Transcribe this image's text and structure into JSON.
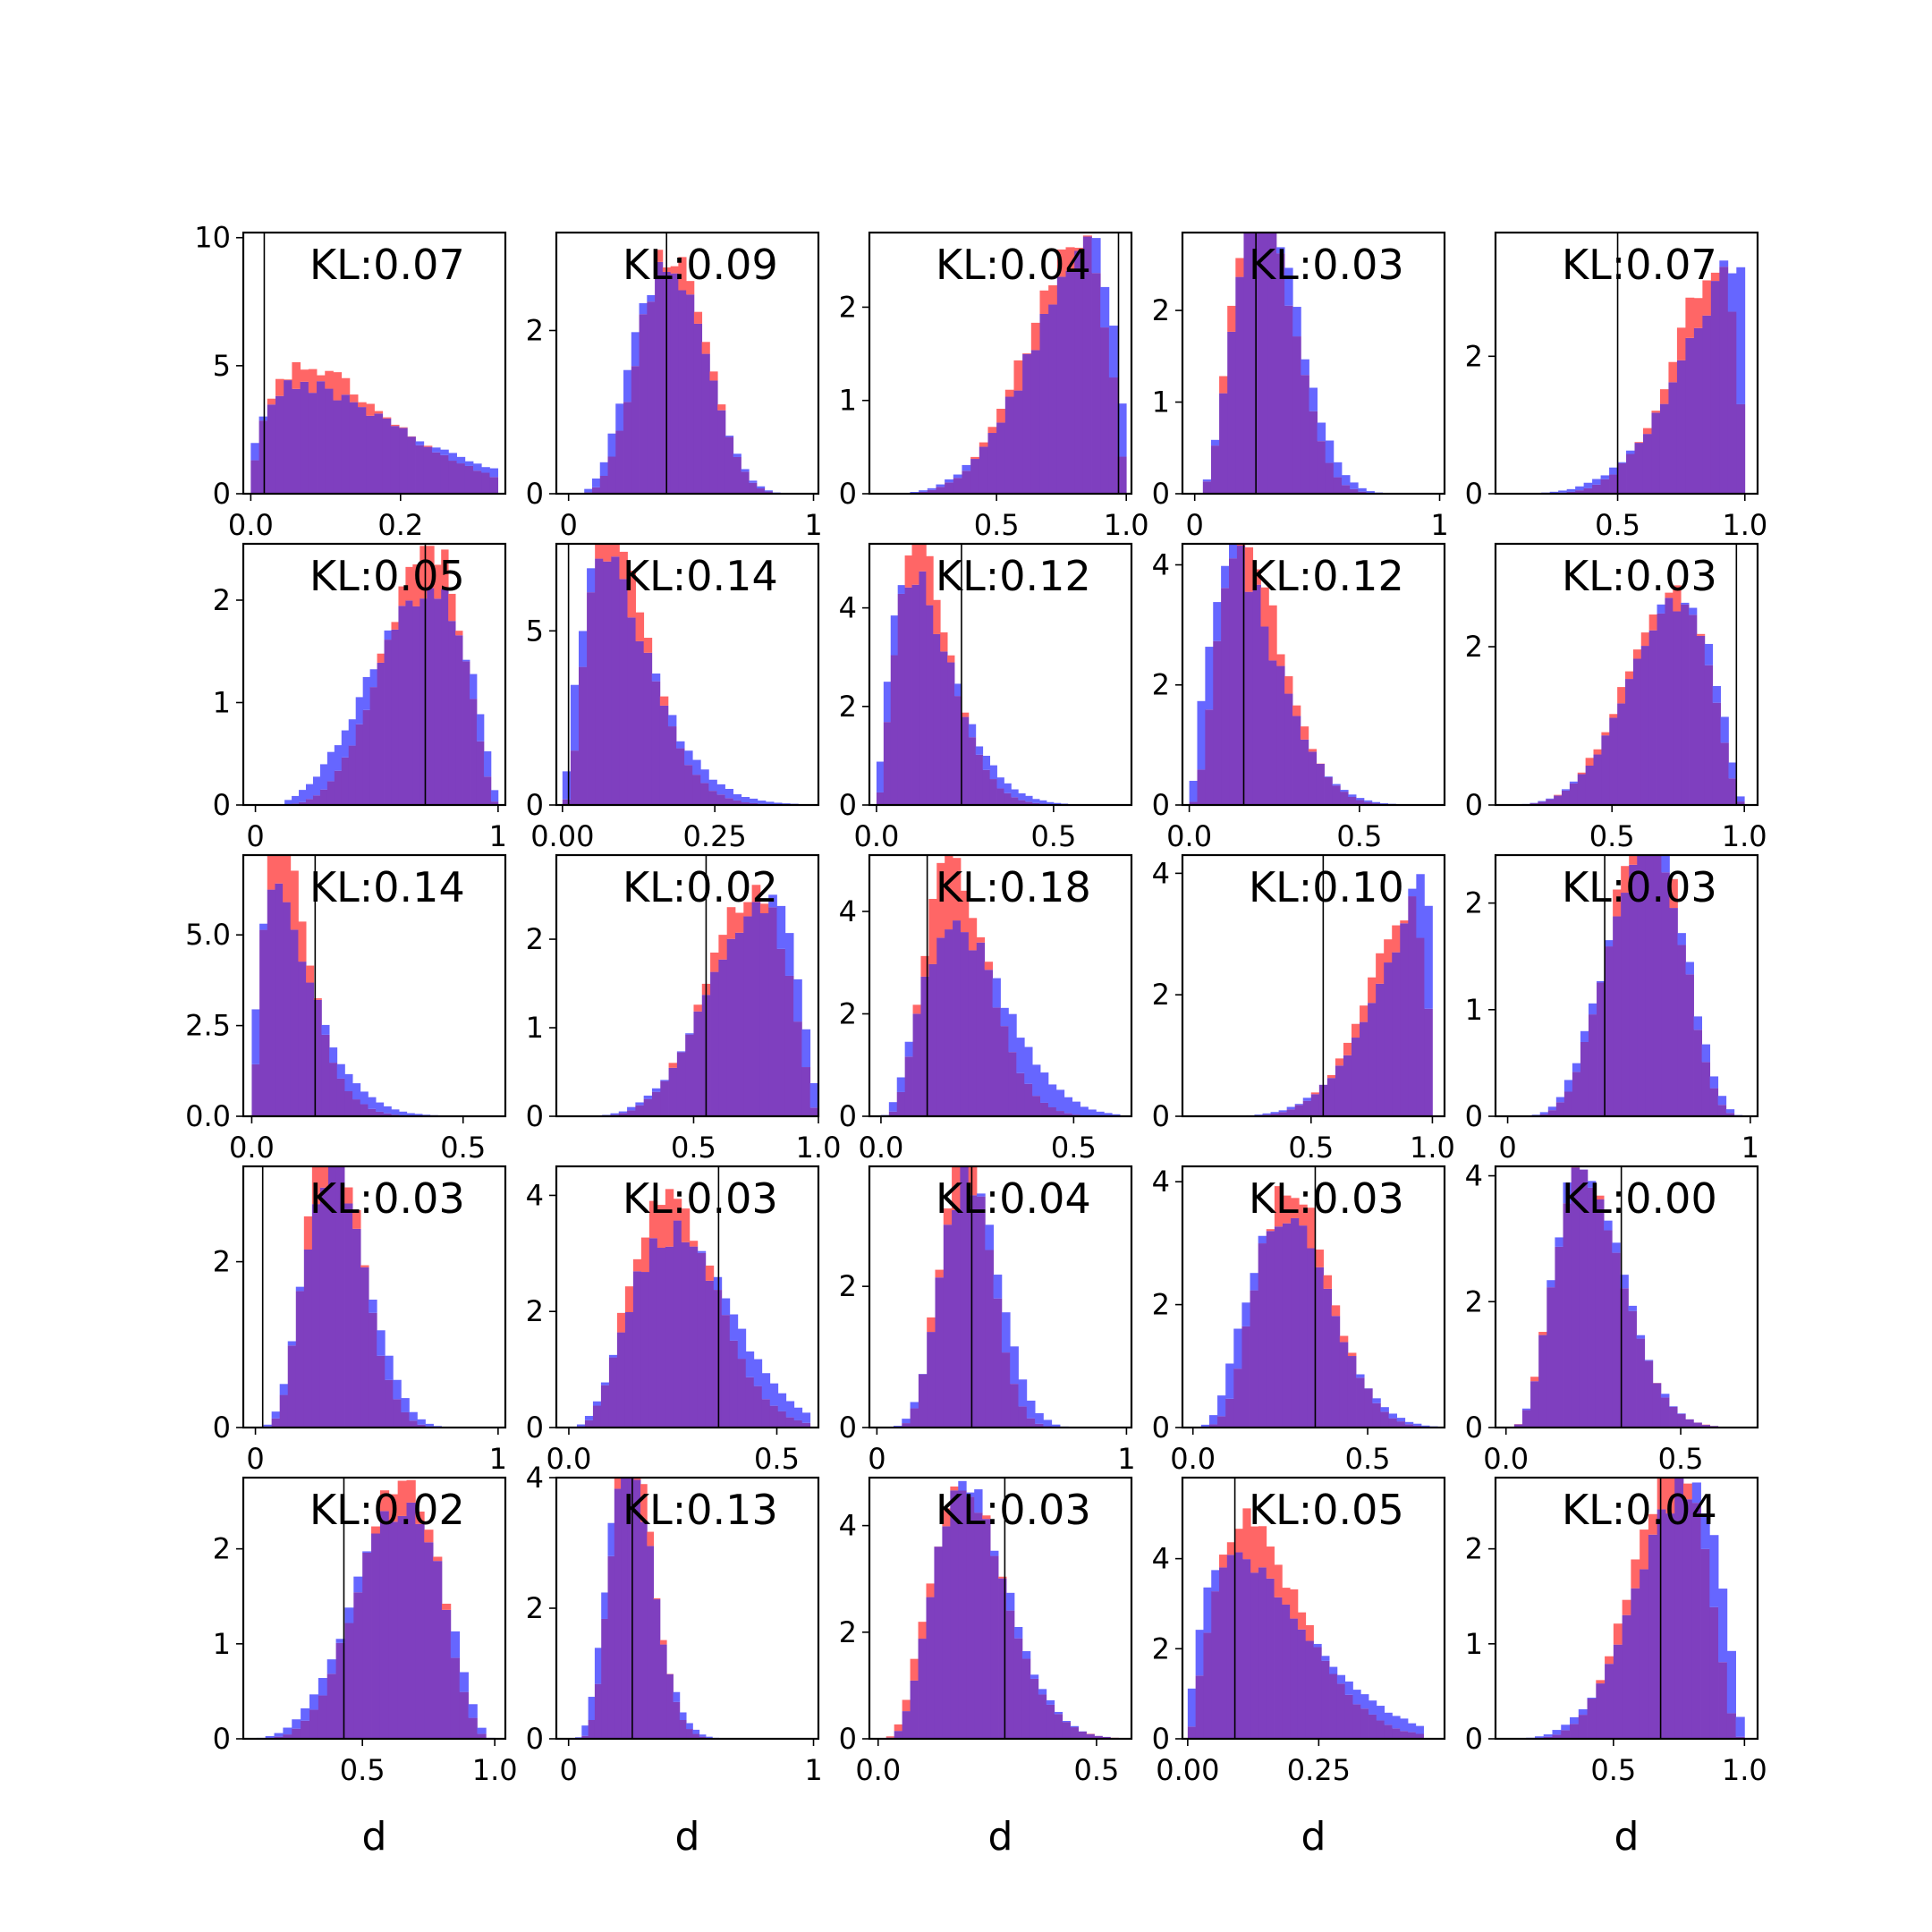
{
  "chart_data": {
    "type": "histogram-grid",
    "rows": 5,
    "cols": 5,
    "xlabel": "d",
    "colors": {
      "series_a": "#ff6666",
      "series_b": "#6666ff",
      "overlap": "#7f3fbf"
    },
    "panels": [
      {
        "kl": "KL:0.07",
        "xlim": [
          -0.01,
          0.34
        ],
        "ylim": [
          0,
          10.2
        ],
        "xticks": [
          {
            "v": 0.0,
            "t": "0.0"
          },
          {
            "v": 0.2,
            "t": "0.2"
          }
        ],
        "yticks": [
          {
            "v": 0,
            "t": "0"
          },
          {
            "v": 5,
            "t": "5"
          },
          {
            "v": 10,
            "t": "10"
          }
        ],
        "ref": 0.018,
        "dist": "beta",
        "ra": 1.8,
        "rb": 11,
        "ba": 1.5,
        "bb": 8,
        "b0": 0.0,
        "b1": 0.33,
        "bins": 30,
        "seed": 1
      },
      {
        "kl": "KL:0.09",
        "xlim": [
          -0.05,
          1.02
        ],
        "ylim": [
          0,
          3.2
        ],
        "xticks": [
          {
            "v": 0,
            "t": "0"
          },
          {
            "v": 1,
            "t": "1"
          }
        ],
        "yticks": [
          {
            "v": 0,
            "t": "0"
          },
          {
            "v": 2,
            "t": "2"
          }
        ],
        "ref": 0.4,
        "dist": "beta",
        "ra": 6,
        "rb": 8,
        "ba": 5,
        "bb": 7,
        "b0": 0.0,
        "b1": 0.96,
        "bins": 30,
        "seed": 2
      },
      {
        "kl": "KL:0.04",
        "xlim": [
          0.01,
          1.02
        ],
        "ylim": [
          0,
          2.8
        ],
        "xticks": [
          {
            "v": 0.5,
            "t": "0.5"
          },
          {
            "v": 1.0,
            "t": "1.0"
          }
        ],
        "yticks": [
          {
            "v": 0,
            "t": "0"
          },
          {
            "v": 1,
            "t": "1"
          },
          {
            "v": 2,
            "t": "2"
          }
        ],
        "ref": 0.97,
        "dist": "beta",
        "ra": 6,
        "rb": 2.2,
        "ba": 5,
        "bb": 1.7,
        "b0": 0.0,
        "b1": 1.0,
        "bins": 30,
        "seed": 3
      },
      {
        "kl": "KL:0.03",
        "xlim": [
          -0.05,
          1.02
        ],
        "ylim": [
          0,
          2.85
        ],
        "xticks": [
          {
            "v": 0,
            "t": "0"
          },
          {
            "v": 1,
            "t": "1"
          }
        ],
        "yticks": [
          {
            "v": 0,
            "t": "0"
          },
          {
            "v": 1,
            "t": "1"
          },
          {
            "v": 2,
            "t": "2"
          }
        ],
        "ref": 0.25,
        "dist": "beta",
        "ra": 4.5,
        "rb": 11,
        "ba": 4,
        "bb": 9,
        "b0": 0.0,
        "b1": 1.0,
        "bins": 30,
        "seed": 4
      },
      {
        "kl": "KL:0.07",
        "xlim": [
          0.02,
          1.05
        ],
        "ylim": [
          0,
          3.8
        ],
        "xticks": [
          {
            "v": 0.5,
            "t": "0.5"
          },
          {
            "v": 1.0,
            "t": "1.0"
          }
        ],
        "yticks": [
          {
            "v": 0,
            "t": "0"
          },
          {
            "v": 2,
            "t": "2"
          }
        ],
        "ref": 0.5,
        "dist": "beta",
        "ra": 7,
        "rb": 1.8,
        "ba": 5,
        "bb": 1.2,
        "b0": 0.0,
        "b1": 1.0,
        "bins": 30,
        "seed": 5
      },
      {
        "kl": "KL:0.05",
        "xlim": [
          -0.05,
          1.03
        ],
        "ylim": [
          0,
          2.55
        ],
        "xticks": [
          {
            "v": 0,
            "t": "0"
          },
          {
            "v": 1,
            "t": "1"
          }
        ],
        "yticks": [
          {
            "v": 0,
            "t": "0"
          },
          {
            "v": 1,
            "t": "1"
          },
          {
            "v": 2,
            "t": "2"
          }
        ],
        "ref": 0.7,
        "dist": "beta",
        "ra": 6,
        "rb": 3,
        "ba": 4,
        "bb": 2.2,
        "b0": 0.12,
        "b1": 1.0,
        "bins": 30,
        "seed": 6
      },
      {
        "kl": "KL:0.14",
        "xlim": [
          -0.01,
          0.42
        ],
        "ylim": [
          0,
          7.5
        ],
        "xticks": [
          {
            "v": 0.0,
            "t": "0.00"
          },
          {
            "v": 0.25,
            "t": "0.25"
          }
        ],
        "yticks": [
          {
            "v": 0,
            "t": "0"
          },
          {
            "v": 5,
            "t": "5"
          }
        ],
        "ref": 0.01,
        "dist": "beta",
        "ra": 3.5,
        "rb": 30,
        "ba": 2.4,
        "bb": 20,
        "b0": 0.0,
        "b1": 0.4,
        "bins": 30,
        "seed": 7
      },
      {
        "kl": "KL:0.12",
        "xlim": [
          -0.02,
          0.72
        ],
        "ylim": [
          0,
          5.3
        ],
        "xticks": [
          {
            "v": 0.0,
            "t": "0.0"
          },
          {
            "v": 0.5,
            "t": "0.5"
          }
        ],
        "yticks": [
          {
            "v": 0,
            "t": "0"
          },
          {
            "v": 2,
            "t": "2"
          },
          {
            "v": 4,
            "t": "4"
          }
        ],
        "ref": 0.24,
        "dist": "beta",
        "ra": 3,
        "rb": 17,
        "ba": 2.2,
        "bb": 12,
        "b0": 0.0,
        "b1": 0.6,
        "bins": 30,
        "seed": 8
      },
      {
        "kl": "KL:0.12",
        "xlim": [
          -0.02,
          0.75
        ],
        "ylim": [
          0,
          4.35
        ],
        "xticks": [
          {
            "v": 0.0,
            "t": "0.0"
          },
          {
            "v": 0.5,
            "t": "0.5"
          }
        ],
        "yticks": [
          {
            "v": 0,
            "t": "0"
          },
          {
            "v": 2,
            "t": "2"
          },
          {
            "v": 4,
            "t": "4"
          }
        ],
        "ref": 0.16,
        "dist": "beta",
        "ra": 3.5,
        "rb": 14,
        "ba": 2.5,
        "bb": 11,
        "b0": 0.0,
        "b1": 0.7,
        "bins": 30,
        "seed": 9
      },
      {
        "kl": "KL:0.03",
        "xlim": [
          0.06,
          1.05
        ],
        "ylim": [
          0,
          3.3
        ],
        "xticks": [
          {
            "v": 0.5,
            "t": "0.5"
          },
          {
            "v": 1.0,
            "t": "1.0"
          }
        ],
        "yticks": [
          {
            "v": 0,
            "t": "0"
          },
          {
            "v": 2,
            "t": "2"
          }
        ],
        "ref": 0.97,
        "dist": "beta",
        "ra": 6.5,
        "rb": 3,
        "ba": 6,
        "bb": 2.6,
        "b0": 0.1,
        "b1": 1.0,
        "bins": 30,
        "seed": 10
      },
      {
        "kl": "KL:0.14",
        "xlim": [
          -0.02,
          0.6
        ],
        "ylim": [
          0,
          7.2
        ],
        "xticks": [
          {
            "v": 0.0,
            "t": "0.0"
          },
          {
            "v": 0.5,
            "t": "0.5"
          }
        ],
        "yticks": [
          {
            "v": 0,
            "t": "0.0"
          },
          {
            "v": 2.5,
            "t": "2.5"
          },
          {
            "v": 5,
            "t": "5.0"
          }
        ],
        "ref": 0.15,
        "dist": "beta",
        "ra": 2.5,
        "rb": 23,
        "ba": 1.8,
        "bb": 15,
        "b0": 0.0,
        "b1": 0.55,
        "bins": 30,
        "seed": 11
      },
      {
        "kl": "KL:0.02",
        "xlim": [
          -0.05,
          1.0
        ],
        "ylim": [
          0,
          2.95
        ],
        "xticks": [
          {
            "v": 0.5,
            "t": "0.5"
          },
          {
            "v": 1.0,
            "t": "1.0"
          }
        ],
        "yticks": [
          {
            "v": 0,
            "t": "0"
          },
          {
            "v": 1,
            "t": "1"
          },
          {
            "v": 2,
            "t": "2"
          }
        ],
        "ref": 0.55,
        "dist": "beta",
        "ra": 6,
        "rb": 2.7,
        "ba": 5,
        "bb": 2.1,
        "b0": 0.0,
        "b1": 1.0,
        "bins": 30,
        "seed": 12
      },
      {
        "kl": "KL:0.18",
        "xlim": [
          -0.03,
          0.65
        ],
        "ylim": [
          0,
          5.1
        ],
        "xticks": [
          {
            "v": 0.0,
            "t": "0.0"
          },
          {
            "v": 0.5,
            "t": "0.5"
          }
        ],
        "yticks": [
          {
            "v": 0,
            "t": "0"
          },
          {
            "v": 2,
            "t": "2"
          },
          {
            "v": 4,
            "t": "4"
          }
        ],
        "ref": 0.12,
        "dist": "beta",
        "ra": 5,
        "rb": 19,
        "ba": 3.4,
        "bb": 11,
        "b0": 0.0,
        "b1": 0.62,
        "bins": 30,
        "seed": 13
      },
      {
        "kl": "KL:0.10",
        "xlim": [
          -0.03,
          1.05
        ],
        "ylim": [
          0,
          4.3
        ],
        "xticks": [
          {
            "v": 0.5,
            "t": "0.5"
          },
          {
            "v": 1.0,
            "t": "1.0"
          }
        ],
        "yticks": [
          {
            "v": 0,
            "t": "0"
          },
          {
            "v": 2,
            "t": "2"
          },
          {
            "v": 4,
            "t": "4"
          }
        ],
        "ref": 0.55,
        "dist": "beta",
        "ra": 7,
        "rb": 1.7,
        "ba": 5.5,
        "bb": 1.2,
        "b0": 0.0,
        "b1": 1.0,
        "bins": 30,
        "seed": 14
      },
      {
        "kl": "KL:0.03",
        "xlim": [
          -0.05,
          1.03
        ],
        "ylim": [
          0,
          2.45
        ],
        "xticks": [
          {
            "v": 0,
            "t": "0"
          },
          {
            "v": 1,
            "t": "1"
          }
        ],
        "yticks": [
          {
            "v": 0,
            "t": "0"
          },
          {
            "v": 1,
            "t": "1"
          },
          {
            "v": 2,
            "t": "2"
          }
        ],
        "ref": 0.4,
        "dist": "beta",
        "ra": 7,
        "rb": 5.5,
        "ba": 6,
        "bb": 4.7,
        "b0": 0.0,
        "b1": 1.0,
        "bins": 30,
        "seed": 15
      },
      {
        "kl": "KL:0.03",
        "xlim": [
          -0.05,
          1.03
        ],
        "ylim": [
          0,
          3.15
        ],
        "xticks": [
          {
            "v": 0,
            "t": "0"
          },
          {
            "v": 1,
            "t": "1"
          }
        ],
        "yticks": [
          {
            "v": 0,
            "t": "0"
          },
          {
            "v": 2,
            "t": "2"
          }
        ],
        "ref": 0.03,
        "dist": "beta",
        "ra": 6,
        "rb": 12,
        "ba": 5,
        "bb": 9.5,
        "b0": 0.0,
        "b1": 1.0,
        "bins": 30,
        "seed": 16
      },
      {
        "kl": "KL:0.03",
        "xlim": [
          -0.03,
          0.6
        ],
        "ylim": [
          0,
          4.5
        ],
        "xticks": [
          {
            "v": 0.0,
            "t": "0.0"
          },
          {
            "v": 0.5,
            "t": "0.5"
          }
        ],
        "yticks": [
          {
            "v": 0,
            "t": "0"
          },
          {
            "v": 2,
            "t": "2"
          },
          {
            "v": 4,
            "t": "4"
          }
        ],
        "ref": 0.36,
        "dist": "beta",
        "ra": 5,
        "rb": 14,
        "ba": 4,
        "bb": 10,
        "b0": 0.0,
        "b1": 0.58,
        "bins": 30,
        "seed": 17
      },
      {
        "kl": "KL:0.04",
        "xlim": [
          -0.03,
          1.02
        ],
        "ylim": [
          0,
          3.7
        ],
        "xticks": [
          {
            "v": 0,
            "t": "0"
          },
          {
            "v": 1,
            "t": "1"
          }
        ],
        "yticks": [
          {
            "v": 0,
            "t": "0"
          },
          {
            "v": 2,
            "t": "2"
          }
        ],
        "ref": 0.38,
        "dist": "beta",
        "ra": 9,
        "rb": 16,
        "ba": 7,
        "bb": 11.5,
        "b0": 0.0,
        "b1": 1.0,
        "bins": 30,
        "seed": 18
      },
      {
        "kl": "KL:0.03",
        "xlim": [
          -0.03,
          0.72
        ],
        "ylim": [
          0,
          4.25
        ],
        "xticks": [
          {
            "v": 0.0,
            "t": "0.0"
          },
          {
            "v": 0.5,
            "t": "0.5"
          }
        ],
        "yticks": [
          {
            "v": 0,
            "t": "0"
          },
          {
            "v": 2,
            "t": "2"
          },
          {
            "v": 4,
            "t": "4"
          }
        ],
        "ref": 0.35,
        "dist": "beta",
        "ra": 6,
        "rb": 14,
        "ba": 4.5,
        "bb": 11,
        "b0": 0.0,
        "b1": 0.7,
        "bins": 30,
        "seed": 19
      },
      {
        "kl": "KL:0.00",
        "xlim": [
          -0.03,
          0.72
        ],
        "ylim": [
          0,
          4.15
        ],
        "xticks": [
          {
            "v": 0.0,
            "t": "0.0"
          },
          {
            "v": 0.5,
            "t": "0.5"
          }
        ],
        "yticks": [
          {
            "v": 0,
            "t": "0"
          },
          {
            "v": 2,
            "t": "2"
          },
          {
            "v": 4,
            "t": "4"
          }
        ],
        "ref": 0.33,
        "dist": "beta",
        "ra": 5,
        "rb": 15,
        "ba": 5,
        "bb": 15,
        "b0": 0.0,
        "b1": 0.7,
        "bins": 30,
        "seed": 20
      },
      {
        "kl": "KL:0.02",
        "xlim": [
          0.05,
          1.04
        ],
        "ylim": [
          0,
          2.75
        ],
        "xticks": [
          {
            "v": 0.5,
            "t": "0.5"
          },
          {
            "v": 1.0,
            "t": "1.0"
          }
        ],
        "yticks": [
          {
            "v": 0,
            "t": "0"
          },
          {
            "v": 1,
            "t": "1"
          },
          {
            "v": 2,
            "t": "2"
          }
        ],
        "ref": 0.43,
        "dist": "beta",
        "ra": 7,
        "rb": 4.2,
        "ba": 5.5,
        "bb": 3.4,
        "b0": 0.0,
        "b1": 1.0,
        "bins": 30,
        "seed": 21
      },
      {
        "kl": "KL:0.13",
        "xlim": [
          -0.05,
          1.02
        ],
        "ylim": [
          0,
          4.0
        ],
        "xticks": [
          {
            "v": 0,
            "t": "0"
          },
          {
            "v": 1,
            "t": "1"
          }
        ],
        "yticks": [
          {
            "v": 0,
            "t": "0"
          },
          {
            "v": 2,
            "t": "2"
          },
          {
            "v": 4,
            "t": "4"
          }
        ],
        "ref": 0.26,
        "dist": "beta",
        "ra": 8,
        "rb": 22,
        "ba": 6,
        "bb": 17,
        "b0": 0.0,
        "b1": 0.8,
        "bins": 30,
        "seed": 22
      },
      {
        "kl": "KL:0.03",
        "xlim": [
          -0.02,
          0.58
        ],
        "ylim": [
          0,
          4.9
        ],
        "xticks": [
          {
            "v": 0.0,
            "t": "0.0"
          },
          {
            "v": 0.5,
            "t": "0.5"
          }
        ],
        "yticks": [
          {
            "v": 0,
            "t": "0"
          },
          {
            "v": 2,
            "t": "2"
          },
          {
            "v": 4,
            "t": "4"
          }
        ],
        "ref": 0.29,
        "dist": "beta",
        "ra": 5,
        "rb": 18,
        "ba": 5.5,
        "bb": 19,
        "b0": 0.0,
        "b1": 0.55,
        "bins": 30,
        "seed": 23
      },
      {
        "kl": "KL:0.05",
        "xlim": [
          -0.01,
          0.49
        ],
        "ylim": [
          0,
          5.8
        ],
        "xticks": [
          {
            "v": 0.0,
            "t": "0.00"
          },
          {
            "v": 0.25,
            "t": "0.25"
          }
        ],
        "yticks": [
          {
            "v": 0,
            "t": "0"
          },
          {
            "v": 2,
            "t": "2"
          },
          {
            "v": 4,
            "t": "4"
          }
        ],
        "ref": 0.09,
        "dist": "beta",
        "ra": 2.6,
        "rb": 14,
        "ba": 1.8,
        "bb": 9,
        "b0": 0.0,
        "b1": 0.45,
        "bins": 30,
        "seed": 24
      },
      {
        "kl": "KL:0.04",
        "xlim": [
          0.05,
          1.05
        ],
        "ylim": [
          0,
          2.75
        ],
        "xticks": [
          {
            "v": 0.5,
            "t": "0.5"
          },
          {
            "v": 1.0,
            "t": "1.0"
          }
        ],
        "yticks": [
          {
            "v": 0,
            "t": "0"
          },
          {
            "v": 1,
            "t": "1"
          },
          {
            "v": 2,
            "t": "2"
          }
        ],
        "ref": 0.68,
        "dist": "beta",
        "ra": 8,
        "rb": 3.5,
        "ba": 6,
        "bb": 2.4,
        "b0": 0.0,
        "b1": 1.0,
        "bins": 30,
        "seed": 25
      }
    ]
  }
}
